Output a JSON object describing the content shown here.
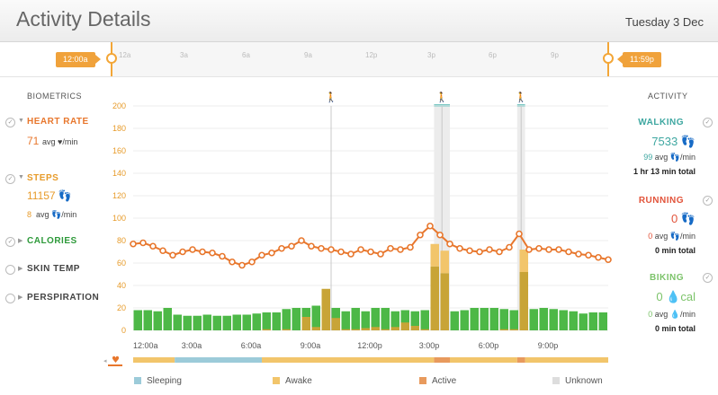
{
  "header": {
    "title": "Activity Details",
    "date": "Tuesday 3 Dec"
  },
  "timeline": {
    "hours": [
      "12a",
      "3a",
      "6a",
      "9a",
      "12p",
      "3p",
      "6p",
      "9p"
    ],
    "start_label": "12:00a",
    "end_label": "11:59p"
  },
  "biometrics": {
    "heading": "BIOMETRICS",
    "heart_rate": {
      "label": "HEART RATE",
      "value": "71",
      "sub": "avg ♥/min"
    },
    "steps": {
      "label": "STEPS",
      "value": "11157 👣",
      "sub_value": "8",
      "sub": "avg 👣/min"
    },
    "calories": {
      "label": "CALORIES"
    },
    "skin_temp": {
      "label": "SKIN TEMP"
    },
    "perspiration": {
      "label": "PERSPIRATION"
    }
  },
  "activity": {
    "heading": "ACTIVITY",
    "walking": {
      "label": "WALKING",
      "value": "7533 👣",
      "sub_value": "99",
      "sub": "avg 👣/min",
      "total": "1 hr 13 min total"
    },
    "running": {
      "label": "RUNNING",
      "value": "0 👣",
      "sub_value": "0",
      "sub": "avg 👣/min",
      "total": "0 min total"
    },
    "biking": {
      "label": "BIKING",
      "value": "0 💧cal",
      "sub_value": "0",
      "sub": "avg 💧/min",
      "total": "0 min total"
    }
  },
  "legend": [
    {
      "label": "Sleeping",
      "color": "#9ccbd9"
    },
    {
      "label": "Awake",
      "color": "#f2c56b"
    },
    {
      "label": "Active",
      "color": "#e89a5d"
    },
    {
      "label": "Unknown",
      "color": "#dddddd"
    }
  ],
  "colors": {
    "heart": "#e8772d",
    "steps": "#e79b2a",
    "calories": "#2e9a3a",
    "walking": "#3ea7a1",
    "running": "#e2533a",
    "biking": "#7cc36a",
    "bar_green": "#4db847",
    "bar_gold": "#c8a437"
  },
  "chart_data": {
    "type": "bar+line",
    "y_ticks": [
      0,
      20,
      40,
      60,
      80,
      100,
      120,
      140,
      160,
      180,
      200
    ],
    "ylim": [
      0,
      200
    ],
    "x_ticks": [
      "12:00a",
      "3:00a",
      "6:00a",
      "9:00a",
      "12:00p",
      "3:00p",
      "6:00p",
      "9:00p"
    ],
    "x_range_hours": [
      0,
      24
    ],
    "walking_markers_hours": [
      10.0,
      15.6,
      19.6
    ],
    "walking_bands_hours": [
      [
        15.2,
        16.0
      ],
      [
        19.4,
        19.8
      ]
    ],
    "heart_rate": {
      "name": "Heart Rate",
      "hours": [
        0,
        0.5,
        1,
        1.5,
        2,
        2.5,
        3,
        3.5,
        4,
        4.5,
        5,
        5.5,
        6,
        6.5,
        7,
        7.5,
        8,
        8.5,
        9,
        9.5,
        10,
        10.5,
        11,
        11.5,
        12,
        12.5,
        13,
        13.5,
        14,
        14.5,
        15,
        15.5,
        16,
        16.5,
        17,
        17.5,
        18,
        18.5,
        19,
        19.5,
        20,
        20.5,
        21,
        21.5,
        22,
        22.5,
        23,
        23.5,
        24
      ],
      "values": [
        77,
        78,
        75,
        71,
        67,
        70,
        72,
        70,
        69,
        66,
        61,
        58,
        61,
        67,
        69,
        73,
        75,
        80,
        75,
        73,
        72,
        70,
        68,
        72,
        70,
        68,
        73,
        72,
        74,
        85,
        93,
        85,
        77,
        73,
        71,
        70,
        72,
        70,
        74,
        86,
        72,
        73,
        72,
        72,
        70,
        68,
        67,
        65,
        63
      ]
    },
    "steps_bars": {
      "name": "Steps",
      "hours": [
        0,
        0.5,
        1,
        1.5,
        2,
        2.5,
        3,
        3.5,
        4,
        4.5,
        5,
        5.5,
        6,
        6.5,
        7,
        7.5,
        8,
        8.5,
        9,
        9.5,
        10,
        10.5,
        11,
        11.5,
        12,
        12.5,
        13,
        13.5,
        14,
        14.5,
        15,
        15.5,
        16,
        16.5,
        17,
        17.5,
        18,
        18.5,
        19,
        19.5,
        20,
        20.5,
        21,
        21.5,
        22,
        22.5,
        23,
        23.5
      ],
      "green": [
        18,
        18,
        17,
        20,
        14,
        13,
        13,
        14,
        13,
        13,
        14,
        14,
        15,
        16,
        16,
        19,
        20,
        20,
        22,
        25,
        20,
        17,
        20,
        17,
        20,
        20,
        17,
        18,
        17,
        18,
        20,
        20,
        17,
        18,
        20,
        20,
        20,
        19,
        18,
        20,
        19,
        20,
        19,
        18,
        17,
        15,
        16,
        16
      ],
      "gold": [
        0,
        0,
        0,
        0,
        0,
        0,
        0,
        0,
        0,
        0,
        0,
        0,
        0,
        1,
        0,
        1,
        0,
        12,
        3,
        37,
        11,
        1,
        1,
        2,
        3,
        1,
        3,
        7,
        4,
        1,
        57,
        51,
        0,
        0,
        0,
        0,
        0,
        1,
        1,
        52,
        0,
        0,
        0,
        0,
        0,
        0,
        0,
        0
      ]
    },
    "state_bar": [
      {
        "state": "Awake",
        "from": 0,
        "to": 2.1
      },
      {
        "state": "Sleeping",
        "from": 2.1,
        "to": 6.5
      },
      {
        "state": "Awake",
        "from": 6.5,
        "to": 15.2
      },
      {
        "state": "Active",
        "from": 15.2,
        "to": 16.0
      },
      {
        "state": "Awake",
        "from": 16.0,
        "to": 19.4
      },
      {
        "state": "Active",
        "from": 19.4,
        "to": 19.8
      },
      {
        "state": "Awake",
        "from": 19.8,
        "to": 24
      }
    ]
  }
}
